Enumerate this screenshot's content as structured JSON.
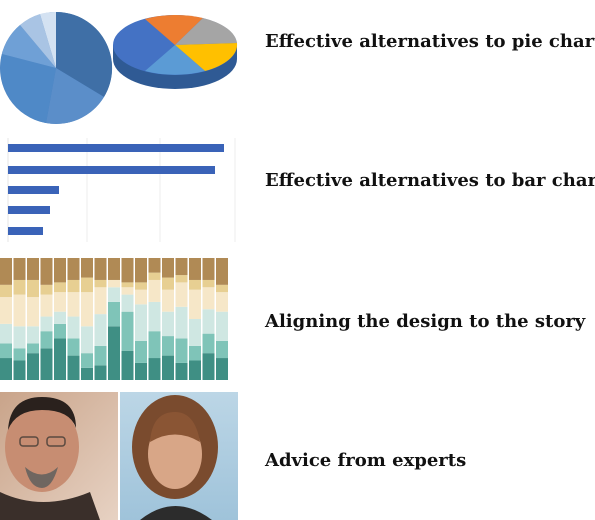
{
  "articles": [
    {
      "title": "Effective alternatives to pie charts"
    },
    {
      "title": "Effective alternatives to bar charts"
    },
    {
      "title": "Aligning the design to the story"
    },
    {
      "title": "Advice from experts"
    }
  ],
  "colors": {
    "pie_blue_dark": "#3f6fa6",
    "pie_blue_mid": "#5b8ec9",
    "pie_blue_light": "#8fb3dd",
    "bar_blue": "#3a63b8",
    "stack_teal_dark": "#3f8f84",
    "stack_teal_mid": "#7fc4b8",
    "stack_teal_light": "#cfe7e2",
    "stack_cream": "#f6e7c8",
    "stack_tan": "#e7cf92",
    "stack_brown": "#b08a55"
  },
  "icons": {
    "thumb1": "pie-charts-thumbnail",
    "thumb2": "bar-chart-thumbnail",
    "thumb3": "stacked-bar-thumbnail",
    "thumb4": "expert-portraits-thumbnail"
  }
}
